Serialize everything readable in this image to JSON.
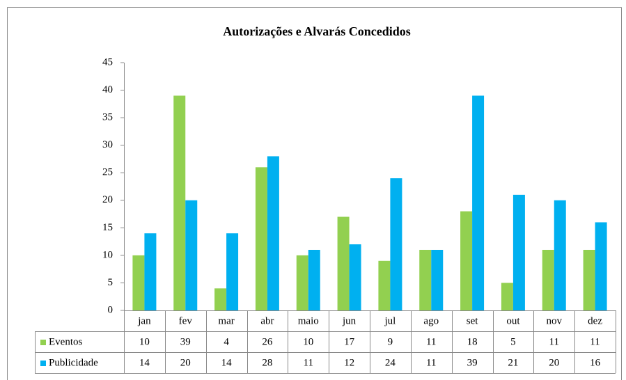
{
  "chart_data": {
    "type": "bar",
    "title": "Autorizações e Alvarás Concedidos",
    "categories": [
      "jan",
      "fev",
      "mar",
      "abr",
      "maio",
      "jun",
      "jul",
      "ago",
      "set",
      "out",
      "nov",
      "dez"
    ],
    "series": [
      {
        "name": "Eventos",
        "color": "#92d050",
        "values": [
          10,
          39,
          4,
          26,
          10,
          17,
          9,
          11,
          18,
          5,
          11,
          11
        ]
      },
      {
        "name": "Publicidade",
        "color": "#00b0f0",
        "values": [
          14,
          20,
          14,
          28,
          11,
          12,
          24,
          11,
          39,
          21,
          20,
          16
        ]
      }
    ],
    "ylim": [
      0,
      45
    ],
    "yticks": [
      0,
      5,
      10,
      15,
      20,
      25,
      30,
      35,
      40,
      45
    ],
    "grid": false
  }
}
